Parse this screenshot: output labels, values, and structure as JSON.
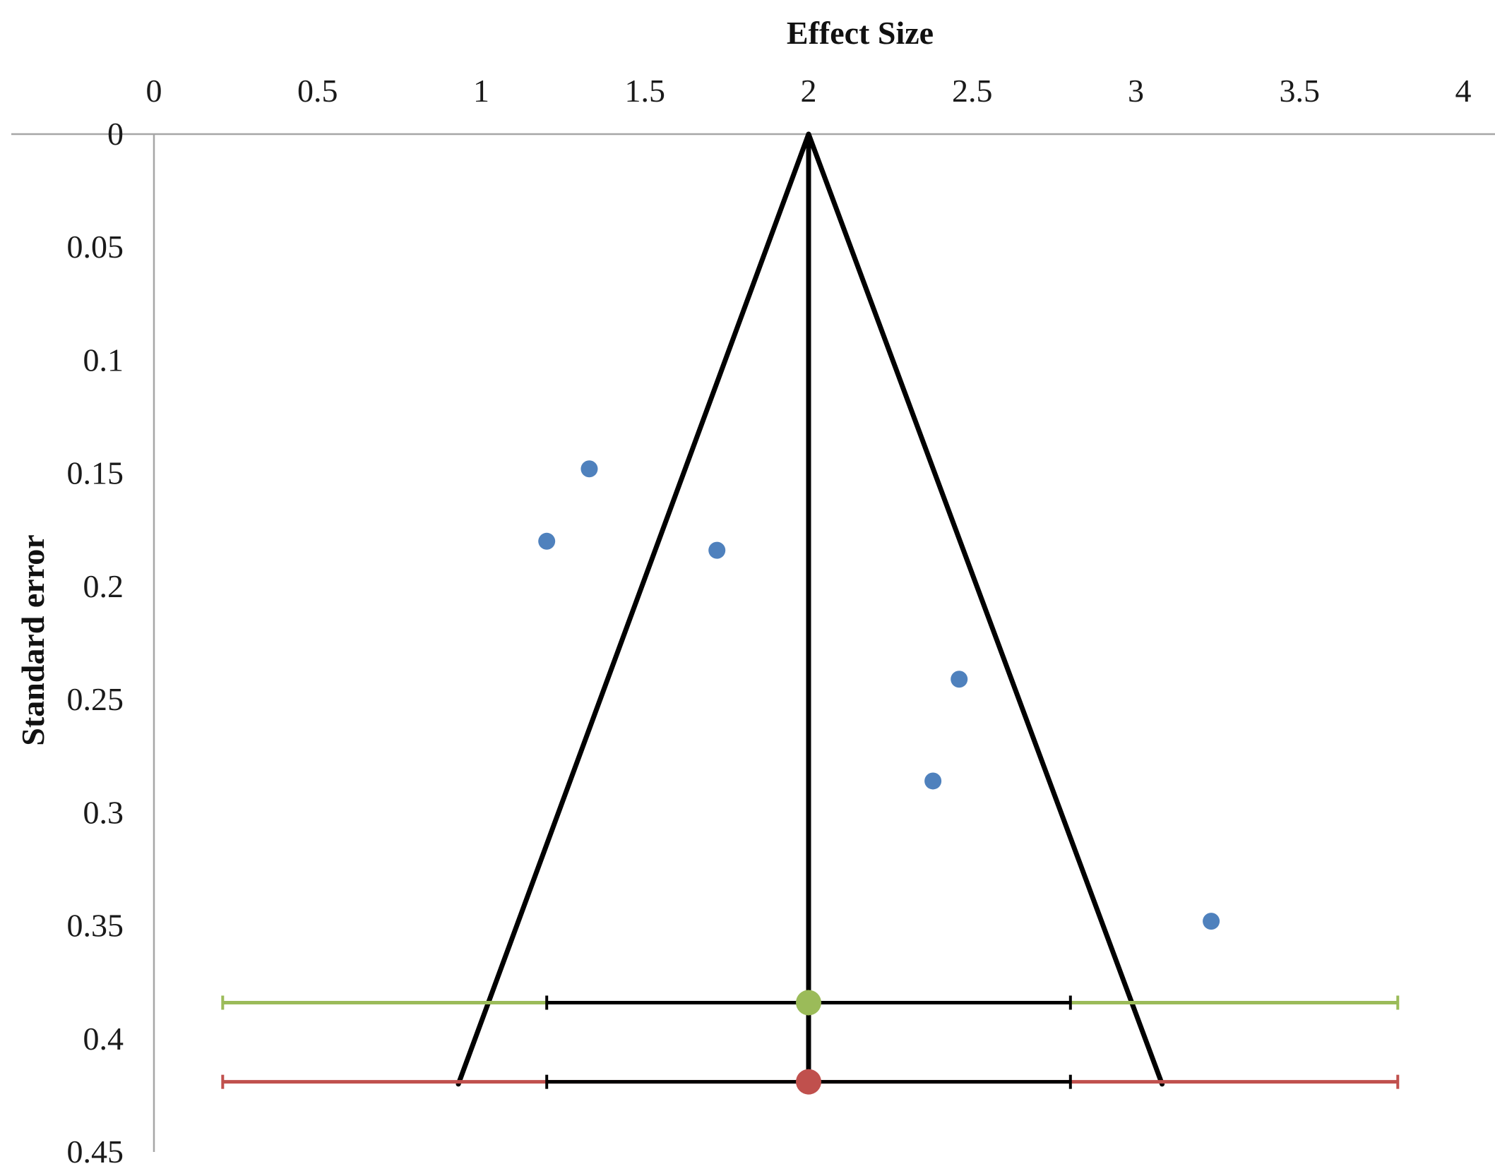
{
  "chart_data": {
    "type": "scatter",
    "xlabel": "Effect Size",
    "ylabel": "Standard error",
    "xlim": [
      0,
      4
    ],
    "ylim": [
      0,
      0.45
    ],
    "y_reversed": true,
    "x_axis_position": "top",
    "x_ticks": [
      "0",
      "0.5",
      "1",
      "1.5",
      "2",
      "2.5",
      "3",
      "3.5",
      "4"
    ],
    "y_ticks": [
      "0",
      "0.05",
      "0.1",
      "0.15",
      "0.2",
      "0.25",
      "0.3",
      "0.35",
      "0.4",
      "0.45"
    ],
    "grid": false,
    "points": [
      {
        "x": 1.33,
        "y": 0.148
      },
      {
        "x": 1.2,
        "y": 0.18
      },
      {
        "x": 1.72,
        "y": 0.184
      },
      {
        "x": 2.46,
        "y": 0.241
      },
      {
        "x": 2.38,
        "y": 0.286
      },
      {
        "x": 3.23,
        "y": 0.348
      }
    ],
    "funnel": {
      "apex": {
        "x": 2.0,
        "y": 0
      },
      "base_left": {
        "x": 0.93,
        "y": 0.42
      },
      "base_right": {
        "x": 3.08,
        "y": 0.42
      },
      "center_line": {
        "x": 2.0,
        "y_from": 0,
        "y_to": 0.42
      }
    },
    "summary_intervals": [
      {
        "estimate": 2.0,
        "y": 0.384,
        "inner": [
          1.2,
          2.8
        ],
        "outer": [
          0.21,
          3.8
        ],
        "color": "#9bbb59"
      },
      {
        "estimate": 2.0,
        "y": 0.419,
        "inner": [
          1.2,
          2.8
        ],
        "outer": [
          0.21,
          3.8
        ],
        "color": "#c0504d"
      }
    ],
    "colors": {
      "points": "#4f81bd",
      "funnel": "#000000",
      "axis": "#a6a6a6"
    }
  }
}
